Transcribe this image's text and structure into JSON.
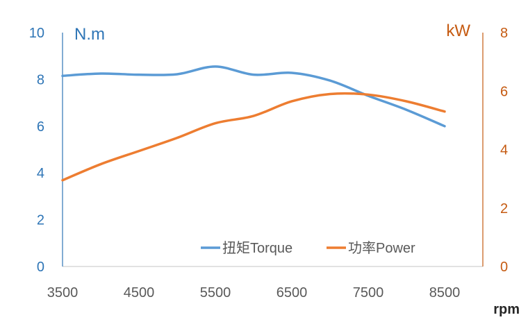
{
  "chart_data": {
    "type": "line",
    "x": [
      3500,
      4000,
      4500,
      5000,
      5500,
      6000,
      6500,
      7000,
      7500,
      8000,
      8500
    ],
    "xticks": [
      "3500",
      "4500",
      "5500",
      "6500",
      "7500",
      "8500"
    ],
    "xlim": [
      3500,
      9000
    ],
    "xlabel": "rpm",
    "y_left": {
      "label": "N.m",
      "ticks": [
        "0",
        "2",
        "4",
        "6",
        "8",
        "10"
      ],
      "lim": [
        0,
        10
      ]
    },
    "y_right": {
      "label": "kW",
      "ticks": [
        "0",
        "2",
        "4",
        "6",
        "8"
      ],
      "lim": [
        0,
        8
      ]
    },
    "series": [
      {
        "name": "扭矩Torque",
        "axis": "left",
        "color": "#5b9bd5",
        "values": [
          8.15,
          8.25,
          8.2,
          8.22,
          8.55,
          8.2,
          8.28,
          7.95,
          7.3,
          6.7,
          6.0
        ]
      },
      {
        "name": "功率Power",
        "axis": "right",
        "color": "#ed7d31",
        "values": [
          2.95,
          3.5,
          3.95,
          4.4,
          4.9,
          5.15,
          5.65,
          5.9,
          5.88,
          5.65,
          5.3
        ]
      }
    ],
    "legend": "bottom-right",
    "grid": false
  },
  "colors": {
    "left_axis": "#2e75b6",
    "right_axis": "#c55a11",
    "x_axis": "#d9d9d9",
    "tick_text": "#595959"
  }
}
